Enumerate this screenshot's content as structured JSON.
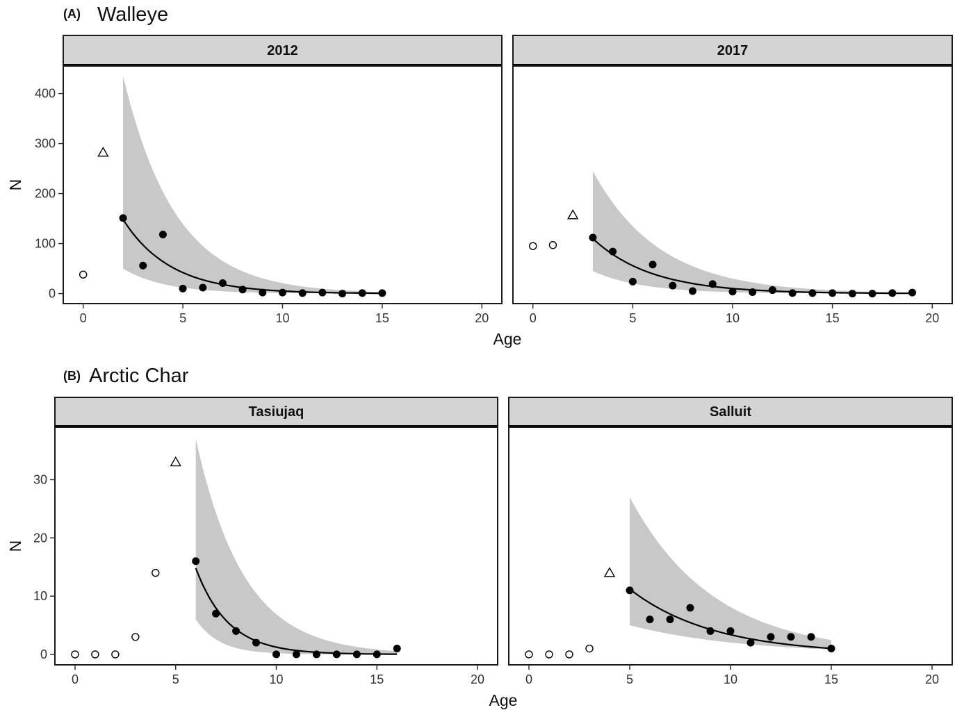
{
  "chart_data": [
    {
      "type": "scatter",
      "panel_label": "(A)",
      "title": "Walleye",
      "xlabel": "Age",
      "ylabel": "N",
      "xlim": [
        -1,
        21
      ],
      "ylim": [
        -20,
        455
      ],
      "x_ticks": [
        0,
        5,
        10,
        15,
        20
      ],
      "y_ticks": [
        0,
        100,
        200,
        300,
        400
      ],
      "grid": false,
      "facets": [
        {
          "name": "2012",
          "open_points": [
            {
              "x": 0,
              "y": 38
            }
          ],
          "triangle_points": [
            {
              "x": 1,
              "y": 282
            }
          ],
          "filled_points": [
            {
              "x": 2,
              "y": 151
            },
            {
              "x": 3,
              "y": 56
            },
            {
              "x": 4,
              "y": 118
            },
            {
              "x": 5,
              "y": 10
            },
            {
              "x": 6,
              "y": 12
            },
            {
              "x": 7,
              "y": 21
            },
            {
              "x": 8,
              "y": 8
            },
            {
              "x": 9,
              "y": 2
            },
            {
              "x": 10,
              "y": 2
            },
            {
              "x": 11,
              "y": 1
            },
            {
              "x": 12,
              "y": 2
            },
            {
              "x": 13,
              "y": 0
            },
            {
              "x": 14,
              "y": 1
            },
            {
              "x": 15,
              "y": 1
            }
          ],
          "fit": {
            "x0": 2,
            "x1": 15,
            "y0": 148,
            "decay": 0.42
          },
          "ribbon": {
            "x0": 2,
            "x1": 15,
            "upper0": 435,
            "upper_decay": 0.38,
            "lower0": 50,
            "lower_decay": 0.48
          }
        },
        {
          "name": "2017",
          "open_points": [
            {
              "x": 0,
              "y": 95
            },
            {
              "x": 1,
              "y": 97
            }
          ],
          "triangle_points": [
            {
              "x": 2,
              "y": 157
            }
          ],
          "filled_points": [
            {
              "x": 3,
              "y": 112
            },
            {
              "x": 4,
              "y": 84
            },
            {
              "x": 5,
              "y": 24
            },
            {
              "x": 6,
              "y": 58
            },
            {
              "x": 7,
              "y": 16
            },
            {
              "x": 8,
              "y": 5
            },
            {
              "x": 9,
              "y": 19
            },
            {
              "x": 10,
              "y": 4
            },
            {
              "x": 11,
              "y": 3
            },
            {
              "x": 12,
              "y": 7
            },
            {
              "x": 13,
              "y": 1
            },
            {
              "x": 14,
              "y": 1
            },
            {
              "x": 15,
              "y": 1
            },
            {
              "x": 16,
              "y": 0
            },
            {
              "x": 17,
              "y": 0
            },
            {
              "x": 18,
              "y": 1
            },
            {
              "x": 19,
              "y": 2
            }
          ],
          "fit": {
            "x0": 3,
            "x1": 19,
            "y0": 110,
            "decay": 0.34
          },
          "ribbon": {
            "x0": 3,
            "x1": 19,
            "upper0": 245,
            "upper_decay": 0.3,
            "lower0": 45,
            "lower_decay": 0.4
          }
        }
      ]
    },
    {
      "type": "scatter",
      "panel_label": "(B)",
      "title": "Arctic Char",
      "xlabel": "Age",
      "ylabel": "N",
      "xlim": [
        -1,
        21
      ],
      "ylim": [
        -1.8,
        39
      ],
      "x_ticks": [
        0,
        5,
        10,
        15,
        20
      ],
      "y_ticks": [
        0,
        10,
        20,
        30
      ],
      "grid": false,
      "facets": [
        {
          "name": "Tasiujaq",
          "open_points": [
            {
              "x": 0,
              "y": 0
            },
            {
              "x": 1,
              "y": 0
            },
            {
              "x": 2,
              "y": 0
            },
            {
              "x": 3,
              "y": 3
            },
            {
              "x": 4,
              "y": 14
            }
          ],
          "triangle_points": [
            {
              "x": 5,
              "y": 33
            }
          ],
          "filled_points": [
            {
              "x": 6,
              "y": 16
            },
            {
              "x": 7,
              "y": 7
            },
            {
              "x": 8,
              "y": 4
            },
            {
              "x": 9,
              "y": 2
            },
            {
              "x": 10,
              "y": 0
            },
            {
              "x": 11,
              "y": 0
            },
            {
              "x": 12,
              "y": 0
            },
            {
              "x": 13,
              "y": 0
            },
            {
              "x": 14,
              "y": 0
            },
            {
              "x": 15,
              "y": 0
            },
            {
              "x": 16,
              "y": 1
            }
          ],
          "fit": {
            "x0": 6,
            "x1": 16,
            "y0": 14.8,
            "decay": 0.62
          },
          "ribbon": {
            "x0": 6,
            "x1": 16,
            "upper0": 37,
            "upper_decay": 0.42,
            "lower0": 6,
            "lower_decay": 0.85
          }
        },
        {
          "name": "Salluit",
          "open_points": [
            {
              "x": 0,
              "y": 0
            },
            {
              "x": 1,
              "y": 0
            },
            {
              "x": 2,
              "y": 0
            },
            {
              "x": 3,
              "y": 1
            }
          ],
          "triangle_points": [
            {
              "x": 4,
              "y": 14
            }
          ],
          "filled_points": [
            {
              "x": 5,
              "y": 11
            },
            {
              "x": 6,
              "y": 6
            },
            {
              "x": 7,
              "y": 6
            },
            {
              "x": 8,
              "y": 8
            },
            {
              "x": 9,
              "y": 4
            },
            {
              "x": 10,
              "y": 4
            },
            {
              "x": 11,
              "y": 2
            },
            {
              "x": 12,
              "y": 3
            },
            {
              "x": 13,
              "y": 3
            },
            {
              "x": 14,
              "y": 3
            },
            {
              "x": 15,
              "y": 1
            }
          ],
          "fit": {
            "x0": 5,
            "x1": 15,
            "y0": 11.2,
            "decay": 0.24
          },
          "ribbon": {
            "x0": 5,
            "x1": 15,
            "upper0": 27,
            "upper_decay": 0.24,
            "lower0": 5,
            "lower_decay": 0.18
          }
        }
      ]
    }
  ]
}
